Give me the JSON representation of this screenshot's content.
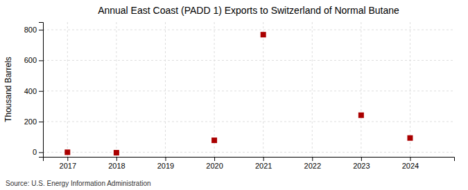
{
  "chart_data": {
    "type": "scatter",
    "title": "Annual East Coast (PADD 1) Exports to Switzerland of Normal Butane",
    "ylabel": "Thousand Barrels",
    "source": "Source: U.S. Energy Information Administration",
    "x": [
      2017,
      2018,
      2020,
      2021,
      2023,
      2024
    ],
    "values": [
      0,
      -3,
      78,
      768,
      242,
      93
    ],
    "color": "#aa0000",
    "marker": "square",
    "xlim": [
      2016.5,
      2024.9
    ],
    "ylim": [
      -30,
      850
    ],
    "xticks": [
      2017,
      2018,
      2019,
      2020,
      2021,
      2022,
      2023,
      2024
    ],
    "yticks": [
      0,
      200,
      400,
      600,
      800
    ],
    "grid": true
  }
}
